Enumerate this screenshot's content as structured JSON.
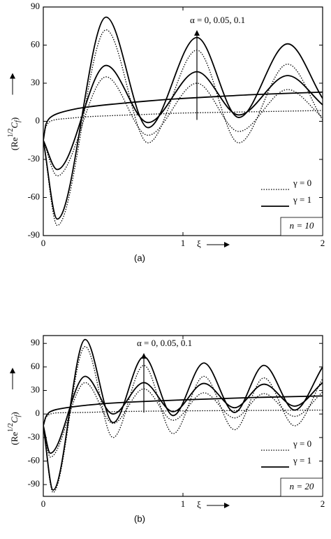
{
  "chart_data": [
    {
      "type": "line",
      "panel_label": "(a)",
      "xlabel": "ξ",
      "ylabel": {
        "base": "(Re",
        "sup": "1/2",
        "mid": "C",
        "sub": "f",
        "end": ")"
      },
      "annotation": "α = 0, 0.05, 0.1",
      "box_text": "n = 10",
      "xlim": [
        0,
        2
      ],
      "xticks": [
        0,
        1,
        2
      ],
      "ylim": [
        -90,
        90
      ],
      "yticks": [
        -90,
        -60,
        -30,
        0,
        30,
        60,
        90
      ],
      "grid": false,
      "legend_corner": "lower right",
      "legend": [
        {
          "label": "γ = 0",
          "style": "dotted"
        },
        {
          "label": "γ = 1",
          "style": "solid"
        }
      ],
      "series": [
        {
          "style": "solid",
          "color": "#000000",
          "x": [
            0,
            0.1,
            0.45,
            0.75,
            1.1,
            1.4,
            1.75,
            2
          ],
          "values": [
            -15,
            -77,
            82,
            -5,
            66,
            3,
            61,
            18
          ]
        },
        {
          "style": "dotted",
          "color": "#000000",
          "x": [
            0,
            0.1,
            0.45,
            0.75,
            1.1,
            1.4,
            1.75,
            2
          ],
          "values": [
            -15,
            -82,
            72,
            -17,
            56,
            -17,
            45,
            1
          ]
        },
        {
          "style": "solid",
          "color": "#000000",
          "x": [
            0,
            0.1,
            0.45,
            0.75,
            1.1,
            1.4,
            1.75,
            2
          ],
          "values": [
            -15,
            -38,
            44,
            -1,
            39,
            5,
            36,
            13
          ]
        },
        {
          "style": "dotted",
          "color": "#000000",
          "x": [
            0,
            0.1,
            0.45,
            0.75,
            1.1,
            1.4,
            1.75,
            2
          ],
          "values": [
            -15,
            -43,
            35,
            -11,
            30,
            -8,
            25,
            3
          ]
        },
        {
          "style": "solid",
          "color": "#000000",
          "x": [
            0,
            0.02,
            0.05,
            0.1,
            0.2,
            0.3,
            0.5,
            0.75,
            1,
            1.25,
            1.5,
            1.75,
            2
          ],
          "values": [
            -15,
            -2,
            3,
            6,
            9,
            11,
            13.5,
            16,
            18,
            19.5,
            21,
            22,
            23
          ]
        },
        {
          "style": "dotted",
          "color": "#000000",
          "x": [
            0,
            0.02,
            0.05,
            0.1,
            0.2,
            0.3,
            0.5,
            0.75,
            1,
            1.25,
            1.5,
            1.75,
            2
          ],
          "values": [
            -15,
            -4,
            0,
            1.5,
            2.5,
            3.5,
            4.5,
            5.5,
            6.5,
            7,
            7.5,
            8,
            8.5
          ]
        }
      ]
    },
    {
      "type": "line",
      "panel_label": "(b)",
      "xlabel": "ξ",
      "ylabel": {
        "base": "(Re",
        "sup": "1/2",
        "mid": "C",
        "sub": "f",
        "end": ")"
      },
      "annotation": "α = 0, 0.05, 0.1",
      "box_text": "n = 20",
      "xlim": [
        0,
        2
      ],
      "xticks": [
        0,
        1,
        2
      ],
      "ylim": [
        -105,
        100
      ],
      "yticks": [
        -90,
        -60,
        -30,
        0,
        30,
        60,
        90
      ],
      "grid": false,
      "legend_corner": "lower right",
      "legend": [
        {
          "label": "γ = 0",
          "style": "dotted"
        },
        {
          "label": "γ = 1",
          "style": "solid"
        }
      ],
      "series": [
        {
          "style": "solid",
          "color": "#000000",
          "x": [
            0,
            0.07,
            0.3,
            0.5,
            0.72,
            0.93,
            1.15,
            1.37,
            1.58,
            1.8,
            2
          ],
          "values": [
            -15,
            -97,
            95,
            -11,
            73,
            -2,
            65,
            2,
            62,
            5,
            60
          ]
        },
        {
          "style": "dotted",
          "color": "#000000",
          "x": [
            0,
            0.07,
            0.3,
            0.5,
            0.72,
            0.93,
            1.15,
            1.37,
            1.58,
            1.8,
            2
          ],
          "values": [
            -15,
            -100,
            86,
            -30,
            62,
            -25,
            48,
            -20,
            46,
            -15,
            45
          ]
        },
        {
          "style": "solid",
          "color": "#000000",
          "x": [
            0,
            0.05,
            0.3,
            0.5,
            0.72,
            0.93,
            1.15,
            1.37,
            1.58,
            1.8,
            2
          ],
          "values": [
            -15,
            -50,
            48,
            0,
            40,
            3,
            39,
            8,
            38,
            10,
            40
          ]
        },
        {
          "style": "dotted",
          "color": "#000000",
          "x": [
            0,
            0.05,
            0.3,
            0.5,
            0.72,
            0.93,
            1.15,
            1.37,
            1.58,
            1.8,
            2
          ],
          "values": [
            -15,
            -55,
            40,
            -12,
            32,
            -8,
            27,
            -5,
            26,
            -3,
            28
          ]
        },
        {
          "style": "solid",
          "color": "#000000",
          "x": [
            0,
            0.02,
            0.05,
            0.1,
            0.3,
            0.5,
            1,
            1.5,
            2
          ],
          "values": [
            -15,
            -3,
            3,
            6,
            11,
            14,
            18,
            21,
            23
          ]
        },
        {
          "style": "dotted",
          "color": "#000000",
          "x": [
            0,
            0.02,
            0.05,
            0.1,
            0.3,
            0.5,
            1,
            1.5,
            2
          ],
          "values": [
            -15,
            -4,
            0,
            1.5,
            2,
            3,
            4,
            4.5,
            5
          ]
        }
      ]
    }
  ]
}
